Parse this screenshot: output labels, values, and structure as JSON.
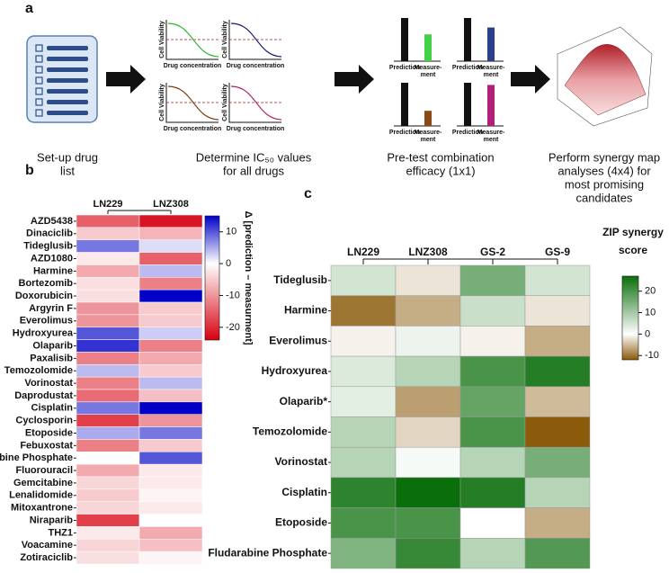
{
  "panel_a": {
    "label": "a",
    "steps": [
      [
        "Set-up drug",
        "list"
      ],
      [
        "Determine IC₅₀ values",
        "for all drugs"
      ],
      [
        "Pre-test combination",
        "efficacy (1x1)"
      ],
      [
        "Perform synergy map",
        "analyses (4x4) for",
        "most promising",
        "candidates"
      ]
    ],
    "y_axis": "Cell Viability",
    "x_axis": "Drug concentration",
    "prediction": "Prediction",
    "measurement": [
      "Measure-",
      "ment"
    ]
  },
  "chart_data": [
    {
      "type": "heatmap",
      "panel": "b",
      "columns": [
        "LN229",
        "LNZ308"
      ],
      "rows": [
        "AZD5438",
        "Dinaciclib",
        "Tideglusib",
        "AZD1080",
        "Harmine",
        "Bortezomib",
        "Doxorubicin",
        "Argyrin F",
        "Everolimus",
        "Hydroxyurea",
        "Olaparib",
        "Paxalisib",
        "Temozolomide",
        "Vorinostat",
        "Daprodustat",
        "Cisplatin",
        "Cyclosporin",
        "Etoposide",
        "Febuxostat",
        "Fludarabine Phosphate",
        "Fluorouracil",
        "Gemcitabine",
        "Lenalidomide",
        "Mitoxantrone",
        "Niraparib",
        "THZ1",
        "Voacamine",
        "Zotiraciclib"
      ],
      "values": [
        [
          -15,
          -22
        ],
        [
          -5,
          -7
        ],
        [
          8,
          2
        ],
        [
          -2,
          -15
        ],
        [
          -8,
          4
        ],
        [
          -3,
          -12
        ],
        [
          -3,
          15
        ],
        [
          -10,
          -5
        ],
        [
          -10,
          -5
        ],
        [
          10,
          3
        ],
        [
          12,
          -12
        ],
        [
          -12,
          -8
        ],
        [
          4,
          -5
        ],
        [
          -12,
          4
        ],
        [
          -14,
          -6
        ],
        [
          8,
          15
        ],
        [
          -18,
          -10
        ],
        [
          5,
          8
        ],
        [
          -12,
          -5
        ],
        [
          0,
          10
        ],
        [
          -8,
          -2
        ],
        [
          -4,
          -2
        ],
        [
          -5,
          -1
        ],
        [
          -4,
          -2
        ],
        [
          -18,
          0
        ],
        [
          -2,
          -8
        ],
        [
          -4,
          -6
        ],
        [
          -3,
          -1
        ]
      ],
      "vlim": [
        -24,
        15
      ],
      "colors": [
        "#d7000f",
        "#ffffff",
        "#0000c8"
      ],
      "colorbar_ticks": [
        10,
        0,
        -10,
        -20
      ],
      "colorbar_label": "Δ [prediction – measurment]"
    },
    {
      "type": "heatmap",
      "panel": "c",
      "columns": [
        "LN229",
        "LNZ308",
        "GS-2",
        "GS-9"
      ],
      "rows": [
        "Tideglusib",
        "Harmine",
        "Everolimus",
        "Hydroxyurea",
        "Olaparib*",
        "Temozolomide",
        "Vorinostat",
        "Cisplatin",
        "Etoposide",
        "Fludarabine Phosphate"
      ],
      "values": [
        [
          5,
          -2,
          15,
          5
        ],
        [
          -10,
          -6,
          6,
          -2
        ],
        [
          -1,
          2,
          -1,
          -6
        ],
        [
          4,
          8,
          20,
          24
        ],
        [
          3,
          -7,
          17,
          -5
        ],
        [
          8,
          -3,
          20,
          -12
        ],
        [
          8,
          1,
          8,
          15
        ],
        [
          23,
          27,
          24,
          8
        ],
        [
          20,
          20,
          0,
          -6
        ],
        [
          14,
          22,
          8,
          19
        ]
      ],
      "vlim": [
        -12,
        27
      ],
      "colors": [
        "#8b5a0b",
        "#ffffff",
        "#0a6e0a"
      ],
      "colorbar_ticks": [
        20,
        10,
        0,
        -10
      ],
      "colorbar_title": [
        "ZIP synergy",
        "score"
      ]
    }
  ]
}
